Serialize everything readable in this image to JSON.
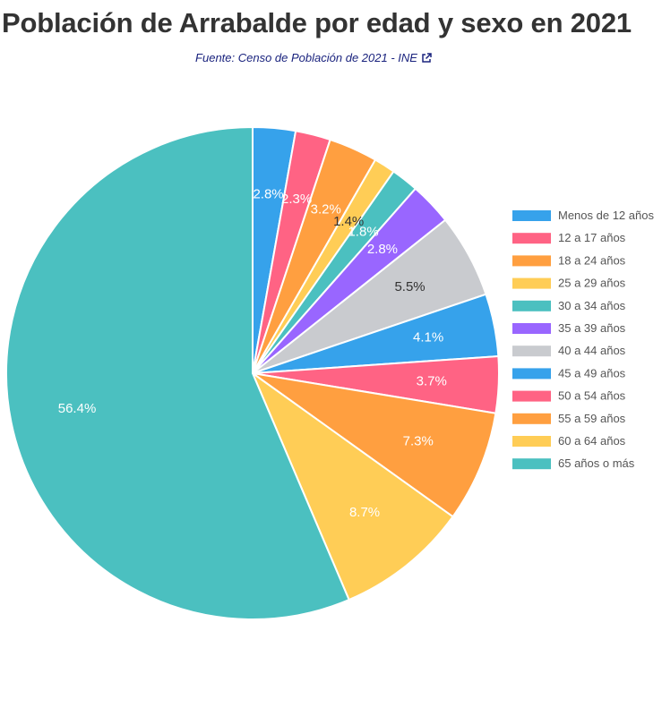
{
  "chart_data": {
    "type": "pie",
    "title": "Población de Arrabalde por edad y sexo en 2021",
    "source": "Fuente: Censo de Población de 2021 - INE",
    "legend_position": "right",
    "slices": [
      {
        "label": "Menos de 12 años",
        "value": 2.8,
        "display": "2.8%",
        "color": "#36a2eb"
      },
      {
        "label": "12 a 17 años",
        "value": 2.3,
        "display": "2.3%",
        "color": "#ff6384"
      },
      {
        "label": "18 a 24 años",
        "value": 3.2,
        "display": "3.2%",
        "color": "#ff9f40"
      },
      {
        "label": "25 a 29 años",
        "value": 1.4,
        "display": "1.4%",
        "color": "#ffcd56"
      },
      {
        "label": "30 a 34 años",
        "value": 1.8,
        "display": "1.8%",
        "color": "#4bc0c0"
      },
      {
        "label": "35 a 39 años",
        "value": 2.8,
        "display": "2.8%",
        "color": "#9966ff"
      },
      {
        "label": "40 a 44 años",
        "value": 5.5,
        "display": "5.5%",
        "color": "#c9cbcf"
      },
      {
        "label": "45 a 49 años",
        "value": 4.1,
        "display": "4.1%",
        "color": "#36a2eb"
      },
      {
        "label": "50 a 54 años",
        "value": 3.7,
        "display": "3.7%",
        "color": "#ff6384"
      },
      {
        "label": "55 a 59 años",
        "value": 7.3,
        "display": "7.3%",
        "color": "#ff9f40"
      },
      {
        "label": "60 a 64 años",
        "value": 8.7,
        "display": "8.7%",
        "color": "#ffcd56"
      },
      {
        "label": "65 años o más",
        "value": 56.4,
        "display": "56.4%",
        "color": "#4bc0c0"
      }
    ]
  }
}
